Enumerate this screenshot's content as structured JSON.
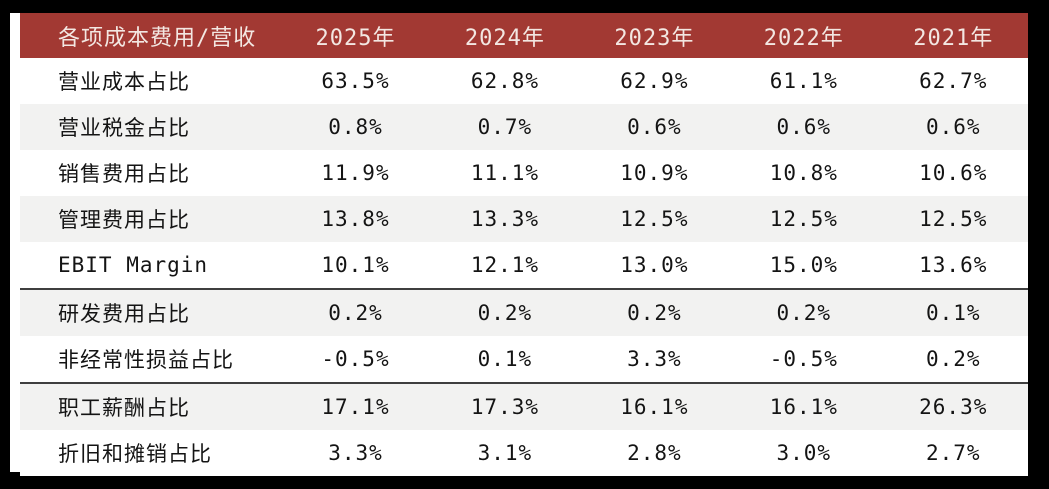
{
  "chart_data": {
    "type": "table",
    "title": "各项成本费用/营收 (cost and expense items as % of revenue, by year)",
    "columns": [
      "各项成本费用/营收",
      "2025年",
      "2024年",
      "2023年",
      "2022年",
      "2021年"
    ],
    "rows": [
      {
        "label": "营业成本占比",
        "values": [
          "63.5%",
          "62.8%",
          "62.9%",
          "61.1%",
          "62.7%"
        ]
      },
      {
        "label": "营业税金占比",
        "values": [
          "0.8%",
          "0.7%",
          "0.6%",
          "0.6%",
          "0.6%"
        ]
      },
      {
        "label": "销售费用占比",
        "values": [
          "11.9%",
          "11.1%",
          "10.9%",
          "10.8%",
          "10.6%"
        ]
      },
      {
        "label": "管理费用占比",
        "values": [
          "13.8%",
          "13.3%",
          "12.5%",
          "12.5%",
          "12.5%"
        ]
      },
      {
        "label": "EBIT Margin",
        "values": [
          "10.1%",
          "12.1%",
          "13.0%",
          "15.0%",
          "13.6%"
        ]
      },
      {
        "label": "研发费用占比",
        "values": [
          "0.2%",
          "0.2%",
          "0.2%",
          "0.2%",
          "0.1%"
        ]
      },
      {
        "label": "非经常性损益占比",
        "values": [
          "-0.5%",
          "0.1%",
          "3.3%",
          "-0.5%",
          "0.2%"
        ]
      },
      {
        "label": "职工薪酬占比",
        "values": [
          "17.1%",
          "17.3%",
          "16.1%",
          "16.1%",
          "26.3%"
        ]
      },
      {
        "label": "折旧和摊销占比",
        "values": [
          "3.3%",
          "3.1%",
          "2.8%",
          "3.0%",
          "2.7%"
        ]
      }
    ],
    "separator_after_rows": [
      4,
      6
    ],
    "layout": {
      "header_position": "top",
      "label_alignment": "left",
      "value_alignment": "center",
      "alternating_rows": true
    },
    "colors": {
      "header_bg": "#A23933",
      "header_text": "#F3E7E2",
      "row_alt_bg": "#F2F2F1",
      "body_text": "#141414",
      "separator_line": "#3F3F3F",
      "frame_bg": "#000000",
      "card_bg": "#FFFFFF"
    }
  }
}
